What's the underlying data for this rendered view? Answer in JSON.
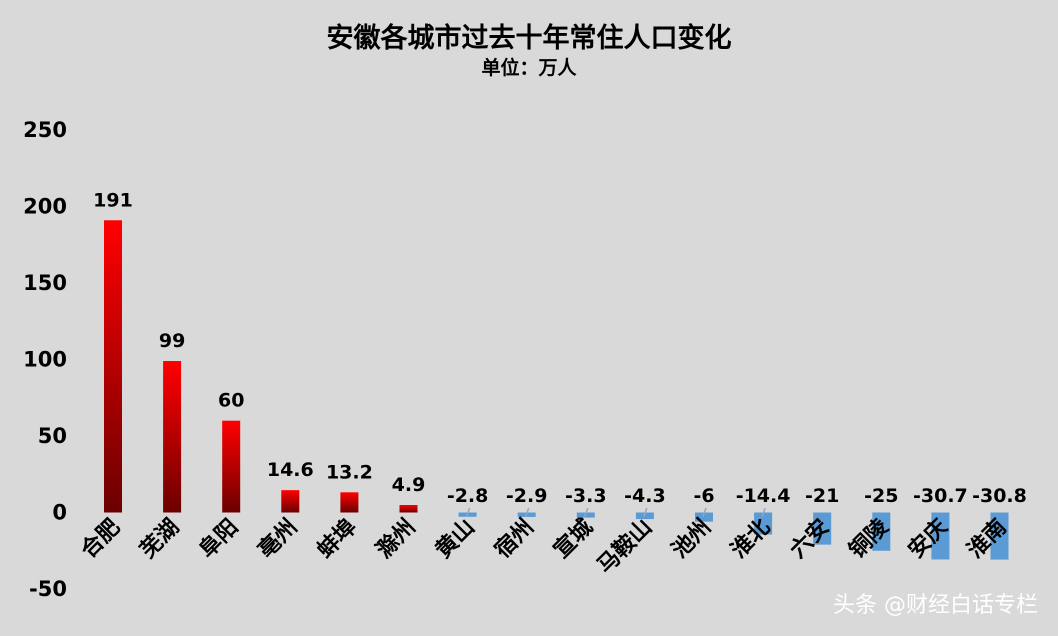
{
  "chart_data": {
    "type": "bar",
    "title": "安徽各城市过去十年常住人口变化",
    "subtitle": "单位：万人",
    "categories": [
      "合肥",
      "芜湖",
      "阜阳",
      "亳州",
      "蚌埠",
      "滁州",
      "黄山",
      "宿州",
      "宣城",
      "马鞍山",
      "池州",
      "淮北",
      "六安",
      "铜陵",
      "安庆",
      "淮南"
    ],
    "values": [
      191,
      99,
      60,
      14.6,
      13.2,
      4.9,
      -2.8,
      -2.9,
      -3.3,
      -4.3,
      -6,
      -14.4,
      -21,
      -25,
      -30.7,
      -30.8
    ],
    "data_labels": [
      "191",
      "99",
      "60",
      "14.6",
      "13.2",
      "4.9",
      "-2.8",
      "-2.9",
      "-3.3",
      "-4.3",
      "-6",
      "-14.4",
      "-21",
      "-25",
      "-30.7",
      "-30.8"
    ],
    "y_ticks": [
      "250",
      "200",
      "150",
      "100",
      "50",
      "0",
      "-50"
    ],
    "ylim": [
      -50,
      250
    ],
    "grid": false,
    "legend": "none",
    "colors": {
      "positive_top": "#ff0000",
      "positive_bottom": "#6b0000",
      "negative": "#5b9bd5",
      "background": "#d9d9d9"
    }
  },
  "watermark": "头条 @财经白话专栏"
}
